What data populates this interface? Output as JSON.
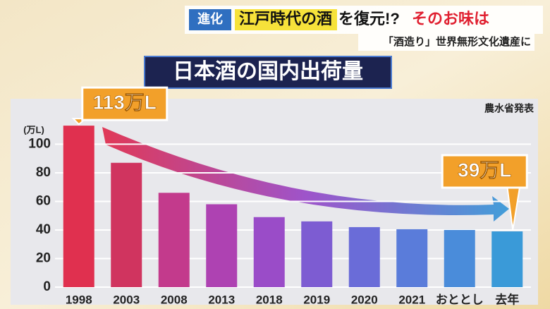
{
  "header": {
    "tag": "進化",
    "headline_highlight": "江戸時代の酒",
    "headline_rest": "を復元!?",
    "headline_red": "そのお味は",
    "subline": "「酒造り」世界無形文化遺産に"
  },
  "chart_data": {
    "type": "bar",
    "title": "日本酒の国内出荷量",
    "source": "農水省発表",
    "y_unit": "(万L)",
    "categories": [
      "1998",
      "2003",
      "2008",
      "2013",
      "2018",
      "2019",
      "2020",
      "2021",
      "おととし",
      "去年"
    ],
    "values": [
      113,
      87,
      66,
      58,
      49,
      46,
      42,
      40.5,
      40,
      39
    ],
    "value_labels": [
      "113万L",
      null,
      null,
      null,
      null,
      null,
      null,
      null,
      null,
      "39万L"
    ],
    "colors": [
      "#e0304f",
      "#d0345f",
      "#c33a8c",
      "#ae42b2",
      "#9a4cc8",
      "#7d5cd2",
      "#6a6cd8",
      "#5a7cda",
      "#4a8cda",
      "#3a9ad8"
    ],
    "ylim": [
      0,
      117
    ],
    "yticks": [
      0,
      20,
      40,
      60,
      80,
      100
    ],
    "grid": true
  }
}
